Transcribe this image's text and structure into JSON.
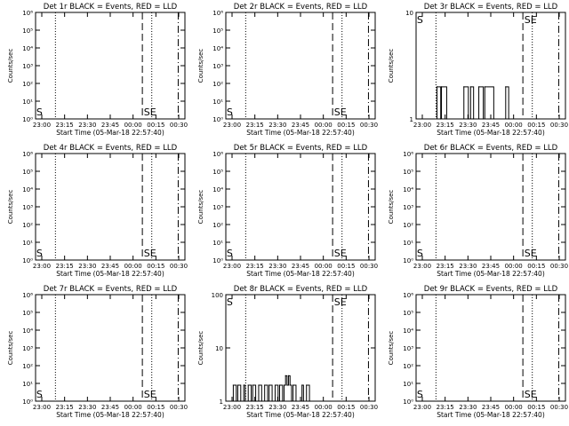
{
  "colors": {
    "background": "#ffffff",
    "ink": "#000000"
  },
  "x_tick_labels": [
    "23:00",
    "23:15",
    "23:30",
    "23:45",
    "00:00",
    "00:15",
    "00:30"
  ],
  "xlabel": "Start Time (05-Mar-18 22:57:40)",
  "ylabel": "Counts/sec",
  "chart_data": [
    {
      "type": "line",
      "title": "Det 1r BLACK = Events, RED = LLD",
      "yscale": "log",
      "ylim": [
        1,
        1000000
      ],
      "yticks": [
        "10⁰",
        "10¹",
        "10²",
        "10³",
        "10⁴",
        "10⁵",
        "10⁶"
      ],
      "xlim": [
        0,
        100
      ],
      "grid": false,
      "markers": {
        "dotted": [
          13.3,
          77.8
        ],
        "dashed": [
          71.5
        ],
        "dashdot": [
          95.5
        ],
        "labels": [
          {
            "text": "SE",
            "x": 72.5
          },
          {
            "text": "S",
            "x": 0.5
          }
        ]
      },
      "series": []
    },
    {
      "type": "line",
      "title": "Det 2r BLACK = Events, RED = LLD",
      "yscale": "log",
      "ylim": [
        1,
        1000000
      ],
      "yticks": [
        "10⁰",
        "10¹",
        "10²",
        "10³",
        "10⁴",
        "10⁵",
        "10⁶"
      ],
      "xlim": [
        0,
        100
      ],
      "grid": false,
      "markers": {
        "dotted": [
          13.3,
          77.8
        ],
        "dashed": [
          71.5
        ],
        "dashdot": [
          95.5
        ],
        "labels": [
          {
            "text": "SE",
            "x": 72.5
          },
          {
            "text": "S",
            "x": 0.5
          }
        ]
      },
      "series": []
    },
    {
      "type": "line",
      "title": "Det 3r BLACK = Events, RED = LLD",
      "yscale": "log",
      "ylim": [
        1,
        10
      ],
      "yticks": [
        "1",
        "10"
      ],
      "xlim": [
        0,
        100
      ],
      "grid": false,
      "markers": {
        "dotted": [
          13.3,
          77.8
        ],
        "dashed": [
          71.5
        ],
        "dashdot": [
          95.5
        ],
        "labels": [
          {
            "text": "SE",
            "x": 72.5
          },
          {
            "text": "S",
            "x": 0.5
          }
        ]
      },
      "series": [
        {
          "values": [
            [
              14.0,
              2
            ],
            [
              16.5,
              1
            ],
            [
              17.0,
              2
            ],
            [
              20.5,
              1
            ],
            [
              32,
              2
            ],
            [
              35,
              1
            ],
            [
              36.5,
              2
            ],
            [
              38.5,
              1
            ],
            [
              42,
              2
            ],
            [
              45,
              1
            ],
            [
              46,
              2
            ],
            [
              52,
              1
            ],
            [
              60,
              2
            ],
            [
              62,
              1
            ]
          ]
        }
      ]
    },
    {
      "type": "line",
      "title": "Det 4r BLACK = Events, RED = LLD",
      "yscale": "log",
      "ylim": [
        1,
        1000000
      ],
      "yticks": [
        "10⁰",
        "10¹",
        "10²",
        "10³",
        "10⁴",
        "10⁵",
        "10⁶"
      ],
      "xlim": [
        0,
        100
      ],
      "grid": false,
      "markers": {
        "dotted": [
          13.3,
          77.8
        ],
        "dashed": [
          71.5
        ],
        "dashdot": [
          95.5
        ],
        "labels": [
          {
            "text": "SE",
            "x": 72.5
          },
          {
            "text": "S",
            "x": 0.5
          }
        ]
      },
      "series": []
    },
    {
      "type": "line",
      "title": "Det 5r BLACK = Events, RED = LLD",
      "yscale": "log",
      "ylim": [
        1,
        1000000
      ],
      "yticks": [
        "10⁰",
        "10¹",
        "10²",
        "10³",
        "10⁴",
        "10⁵",
        "10⁶"
      ],
      "xlim": [
        0,
        100
      ],
      "grid": false,
      "markers": {
        "dotted": [
          13.3,
          77.8
        ],
        "dashed": [
          71.5
        ],
        "dashdot": [
          95.5
        ],
        "labels": [
          {
            "text": "SE",
            "x": 72.5
          },
          {
            "text": "S",
            "x": 0.5
          }
        ]
      },
      "series": []
    },
    {
      "type": "line",
      "title": "Det 6r BLACK = Events, RED = LLD",
      "yscale": "log",
      "ylim": [
        1,
        1000000
      ],
      "yticks": [
        "10⁰",
        "10¹",
        "10²",
        "10³",
        "10⁴",
        "10⁵",
        "10⁶"
      ],
      "xlim": [
        0,
        100
      ],
      "grid": false,
      "markers": {
        "dotted": [
          13.3,
          77.8
        ],
        "dashed": [
          71.5
        ],
        "dashdot": [
          95.5
        ],
        "labels": [
          {
            "text": "SE",
            "x": 72.5
          },
          {
            "text": "S",
            "x": 0.5
          }
        ]
      },
      "series": []
    },
    {
      "type": "line",
      "title": "Det 7r BLACK = Events, RED = LLD",
      "yscale": "log",
      "ylim": [
        1,
        1000000
      ],
      "yticks": [
        "10⁰",
        "10¹",
        "10²",
        "10³",
        "10⁴",
        "10⁵",
        "10⁶"
      ],
      "xlim": [
        0,
        100
      ],
      "grid": false,
      "markers": {
        "dotted": [
          13.3,
          77.8
        ],
        "dashed": [
          71.5
        ],
        "dashdot": [
          95.5
        ],
        "labels": [
          {
            "text": "SE",
            "x": 72.5
          },
          {
            "text": "S",
            "x": 0.5
          }
        ]
      },
      "series": []
    },
    {
      "type": "line",
      "title": "Det 8r BLACK = Events, RED = LLD",
      "yscale": "log",
      "ylim": [
        1,
        100
      ],
      "yticks": [
        "1",
        "10",
        "100"
      ],
      "xlim": [
        0,
        100
      ],
      "grid": false,
      "markers": {
        "dotted": [
          13.3,
          77.8
        ],
        "dashed": [
          71.5
        ],
        "dashdot": [
          95.5
        ],
        "labels": [
          {
            "text": "SE",
            "x": 72.5
          },
          {
            "text": "S",
            "x": 0.5
          }
        ]
      },
      "series": [
        {
          "values": [
            [
              5,
              2
            ],
            [
              7,
              1
            ],
            [
              8,
              2
            ],
            [
              10,
              1
            ],
            [
              12,
              2
            ],
            [
              13,
              1
            ],
            [
              15,
              2
            ],
            [
              17,
              1
            ],
            [
              18,
              2
            ],
            [
              20,
              1
            ],
            [
              22,
              2
            ],
            [
              24,
              1
            ],
            [
              26,
              2
            ],
            [
              28,
              1
            ],
            [
              29,
              2
            ],
            [
              31,
              1
            ],
            [
              33,
              2
            ],
            [
              35,
              1
            ],
            [
              36,
              2
            ],
            [
              38,
              1
            ],
            [
              39,
              2
            ],
            [
              40,
              3
            ],
            [
              41,
              2
            ],
            [
              42,
              3
            ],
            [
              43,
              2
            ],
            [
              44,
              1
            ],
            [
              45,
              2
            ],
            [
              47,
              1
            ],
            [
              51,
              2
            ],
            [
              52,
              1
            ],
            [
              54,
              2
            ],
            [
              56,
              1
            ]
          ]
        }
      ]
    },
    {
      "type": "line",
      "title": "Det 9r BLACK = Events, RED = LLD",
      "yscale": "log",
      "ylim": [
        1,
        1000000
      ],
      "yticks": [
        "10⁰",
        "10¹",
        "10²",
        "10³",
        "10⁴",
        "10⁵",
        "10⁶"
      ],
      "xlim": [
        0,
        100
      ],
      "grid": false,
      "markers": {
        "dotted": [
          13.3,
          77.8
        ],
        "dashed": [
          71.5
        ],
        "dashdot": [
          95.5
        ],
        "labels": [
          {
            "text": "SE",
            "x": 72.5
          },
          {
            "text": "S",
            "x": 0.5
          }
        ]
      },
      "series": []
    }
  ]
}
